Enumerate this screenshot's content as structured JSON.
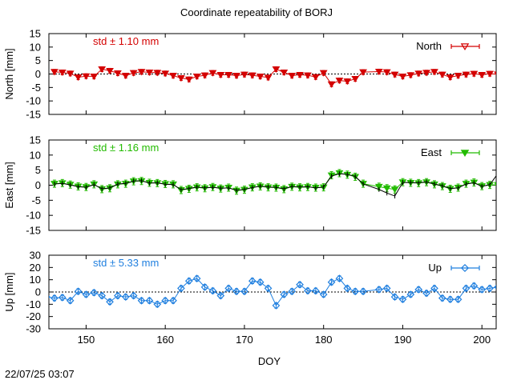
{
  "title": "Coordinate repeatability of BORJ",
  "timestamp": "22/07/25 03:07",
  "colors": {
    "north": "#d40000",
    "east": "#22bb00",
    "up": "#1f7fdf",
    "trend": "#000000"
  },
  "chart_data": [
    {
      "type": "line",
      "name": "north-panel",
      "ylabel": "North [mm]",
      "legend": "North",
      "legend_position": "top-right",
      "std_label": "std ± 1.10 mm",
      "ylim": [
        -15,
        15
      ],
      "yticks": [
        "15",
        "10",
        "5",
        "0",
        "-5",
        "-10",
        "-15"
      ],
      "zero_line": true,
      "series": [
        {
          "name": "North",
          "x": [
            146,
            147,
            148,
            149,
            150,
            151,
            152,
            153,
            154,
            155,
            156,
            157,
            158,
            159,
            160,
            161,
            162,
            163,
            164,
            165,
            166,
            167,
            168,
            169,
            170,
            171,
            172,
            173,
            174,
            175,
            176,
            177,
            178,
            179,
            180,
            181,
            182,
            183,
            184,
            185,
            187,
            188,
            189,
            190,
            191,
            192,
            193,
            194,
            195,
            196,
            197,
            198,
            199,
            200,
            201,
            202
          ],
          "y": [
            0.8,
            0.6,
            0.2,
            -1.2,
            -0.8,
            -0.9,
            1.8,
            1.2,
            0.3,
            -0.6,
            0.4,
            0.8,
            0.6,
            0.5,
            0.2,
            -0.6,
            -1.5,
            -2.0,
            -0.9,
            -0.5,
            0.4,
            -0.3,
            -0.3,
            -0.6,
            -0.2,
            -0.5,
            -0.9,
            -1.3,
            1.8,
            0.6,
            -0.6,
            -0.3,
            -0.5,
            -1.1,
            0.4,
            -3.8,
            -2.4,
            -2.7,
            -1.8,
            0.7,
            0.9,
            0.7,
            -0.2,
            -0.9,
            -0.4,
            0.2,
            0.5,
            0.8,
            -0.2,
            -1.2,
            -0.6,
            -0.2,
            0.1,
            -0.3,
            0.1,
            -0.1
          ],
          "err": [
            0.9,
            0.9,
            0.9,
            0.9,
            0.9,
            0.9,
            0.9,
            0.9,
            0.9,
            0.9,
            0.9,
            0.9,
            0.9,
            0.9,
            0.9,
            0.9,
            0.9,
            0.9,
            0.9,
            0.9,
            0.9,
            0.9,
            0.9,
            0.9,
            0.9,
            0.9,
            0.9,
            0.9,
            0.9,
            0.9,
            0.9,
            0.9,
            0.9,
            0.9,
            0.9,
            0.9,
            0.9,
            0.9,
            0.9,
            0.9,
            0.9,
            0.9,
            0.9,
            0.9,
            0.9,
            0.9,
            0.9,
            0.9,
            0.9,
            0.9,
            0.9,
            0.9,
            0.9,
            0.9,
            0.9,
            0.9
          ]
        }
      ]
    },
    {
      "type": "line",
      "name": "east-panel",
      "ylabel": "East [mm]",
      "legend": "East",
      "legend_position": "top-right",
      "std_label": "std ± 1.16 mm",
      "ylim": [
        -15,
        15
      ],
      "yticks": [
        "15",
        "10",
        "5",
        "0",
        "-5",
        "-10",
        "-15"
      ],
      "zero_line": false,
      "series": [
        {
          "name": "East",
          "x": [
            146,
            147,
            148,
            149,
            150,
            151,
            152,
            153,
            154,
            155,
            156,
            157,
            158,
            159,
            160,
            161,
            162,
            163,
            164,
            165,
            166,
            167,
            168,
            169,
            170,
            171,
            172,
            173,
            174,
            175,
            176,
            177,
            178,
            179,
            180,
            181,
            182,
            183,
            184,
            185,
            187,
            188,
            189,
            190,
            191,
            192,
            193,
            194,
            195,
            196,
            197,
            198,
            199,
            200,
            201,
            202
          ],
          "y": [
            0.5,
            0.7,
            0.2,
            -0.4,
            -0.6,
            0.3,
            -1.3,
            -1.0,
            0.3,
            0.5,
            1.3,
            1.4,
            0.8,
            0.7,
            0.4,
            0.3,
            -1.6,
            -1.2,
            -0.7,
            -1.0,
            -0.6,
            -1.1,
            -0.8,
            -1.8,
            -1.5,
            -0.7,
            -0.4,
            -0.7,
            -0.8,
            -1.3,
            -0.5,
            -0.7,
            -0.6,
            -0.8,
            -0.7,
            3.3,
            4.0,
            3.5,
            2.8,
            0.5,
            -0.5,
            -1.0,
            -1.4,
            1.0,
            0.8,
            0.7,
            1.0,
            0.3,
            -0.3,
            -1.2,
            -0.8,
            0.5,
            0.9,
            -0.3,
            0.1,
            0.1
          ],
          "err": [
            1.2,
            1.2,
            1.2,
            1.2,
            1.2,
            1.2,
            1.2,
            1.2,
            1.2,
            1.2,
            1.2,
            1.2,
            1.2,
            1.2,
            1.2,
            1.2,
            1.2,
            1.2,
            1.2,
            1.2,
            1.2,
            1.2,
            1.2,
            1.2,
            1.2,
            1.2,
            1.2,
            1.2,
            1.2,
            1.2,
            1.2,
            1.2,
            1.2,
            1.2,
            1.2,
            1.2,
            1.2,
            1.2,
            1.2,
            1.2,
            1.2,
            1.2,
            1.2,
            1.2,
            1.2,
            1.2,
            1.2,
            1.2,
            1.2,
            1.2,
            1.2,
            1.2,
            1.2,
            1.2,
            1.2,
            1.2
          ]
        },
        {
          "name": "East trend",
          "x": [
            146,
            147,
            148,
            149,
            150,
            151,
            152,
            153,
            154,
            155,
            156,
            157,
            158,
            159,
            160,
            161,
            162,
            163,
            164,
            165,
            166,
            167,
            168,
            169,
            170,
            171,
            172,
            173,
            174,
            175,
            176,
            177,
            178,
            179,
            180,
            181,
            182,
            183,
            184,
            185,
            187,
            188,
            189,
            190,
            191,
            192,
            193,
            194,
            195,
            196,
            197,
            198,
            199,
            200,
            201,
            202
          ],
          "y": [
            0.4,
            0.6,
            0.1,
            -0.5,
            -0.7,
            0.2,
            -1.2,
            -0.9,
            0.4,
            0.6,
            1.4,
            1.5,
            0.7,
            0.8,
            0.3,
            0.2,
            -1.5,
            -1.1,
            -0.6,
            -0.9,
            -0.7,
            -1.0,
            -0.9,
            -1.7,
            -1.4,
            -0.8,
            -0.3,
            -0.6,
            -0.7,
            -1.2,
            -0.4,
            -0.6,
            -0.5,
            -0.9,
            -0.6,
            3.0,
            3.8,
            3.6,
            2.9,
            0.4,
            -1.4,
            -2.6,
            -3.6,
            0.9,
            0.9,
            0.8,
            1.1,
            0.4,
            -0.2,
            -1.1,
            -0.9,
            0.4,
            0.8,
            -0.4,
            0.2,
            3.8
          ]
        }
      ]
    },
    {
      "type": "line",
      "name": "up-panel",
      "ylabel": "Up [mm]",
      "legend": "Up",
      "legend_position": "top-right",
      "std_label": "std ± 5.33 mm",
      "ylim": [
        -30,
        30
      ],
      "yticks": [
        "30",
        "20",
        "10",
        "0",
        "-10",
        "-20",
        "-30"
      ],
      "zero_line": true,
      "xlabel": "DOY",
      "xlim": [
        145.3,
        201.8
      ],
      "xticks": [
        150,
        160,
        170,
        180,
        190,
        200
      ],
      "series": [
        {
          "name": "Up",
          "x": [
            145,
            146,
            147,
            148,
            149,
            150,
            151,
            152,
            153,
            154,
            155,
            156,
            157,
            158,
            159,
            160,
            161,
            162,
            163,
            164,
            165,
            166,
            167,
            168,
            169,
            170,
            171,
            172,
            173,
            174,
            175,
            176,
            177,
            178,
            179,
            180,
            181,
            182,
            183,
            184,
            185,
            187,
            188,
            189,
            190,
            191,
            192,
            193,
            194,
            195,
            196,
            197,
            198,
            199,
            200,
            201,
            202
          ],
          "y": [
            -4.0,
            -5.0,
            -4.5,
            -7.0,
            0.5,
            -2.0,
            -0.5,
            -3.0,
            -8.0,
            -3.0,
            -4.0,
            -3.0,
            -7.0,
            -7.0,
            -10.0,
            -7.0,
            -7.0,
            3.0,
            9.0,
            11.0,
            4.0,
            1.0,
            -3.0,
            3.0,
            0.5,
            0.5,
            9.0,
            8.0,
            3.0,
            -11.0,
            -2.0,
            0.5,
            6.0,
            1.0,
            1.0,
            -2.0,
            8.0,
            11.0,
            3.0,
            0.5,
            0.5,
            2.0,
            3.0,
            -4.0,
            -6.0,
            -2.0,
            2.0,
            -1.0,
            3.0,
            -5.0,
            -6.0,
            -6.0,
            3.0,
            5.0,
            2.0,
            3.0,
            4.0
          ],
          "err": [
            2.2,
            2.2,
            2.2,
            2.2,
            2.2,
            2.2,
            2.2,
            2.2,
            2.2,
            2.2,
            2.2,
            2.2,
            2.2,
            2.2,
            2.2,
            2.2,
            2.2,
            2.2,
            2.2,
            2.2,
            2.2,
            2.2,
            2.2,
            2.2,
            2.2,
            2.2,
            2.2,
            2.2,
            2.2,
            2.2,
            2.2,
            2.2,
            2.2,
            2.2,
            2.2,
            2.2,
            2.2,
            2.2,
            2.2,
            2.2,
            2.2,
            2.2,
            2.2,
            2.2,
            2.2,
            2.2,
            2.2,
            2.2,
            2.2,
            2.2,
            2.2,
            2.2,
            2.2,
            2.2,
            2.2,
            2.2,
            2.2
          ]
        }
      ]
    }
  ]
}
